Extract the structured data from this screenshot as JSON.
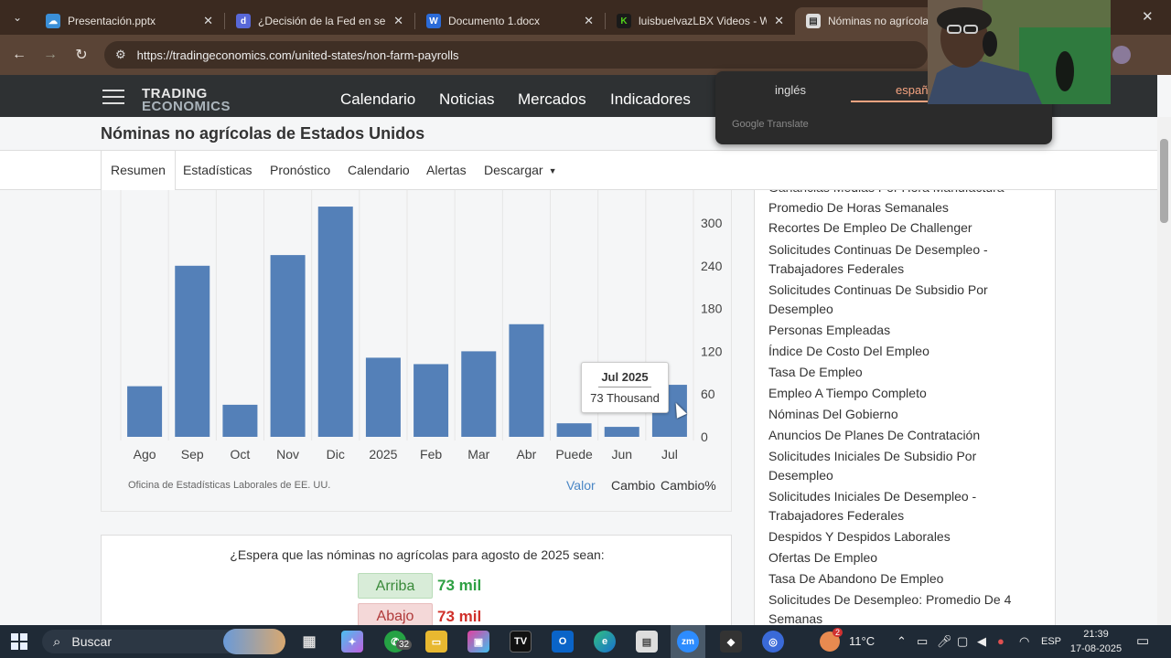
{
  "browser": {
    "tabs": [
      {
        "label": "Presentación.pptx",
        "icon": "onedrive-icon",
        "color": "#3a8fd8"
      },
      {
        "label": "¿Decisión de la Fed en septi",
        "icon": "doc-icon",
        "color": "#5868d8"
      },
      {
        "label": "Documento 1.docx",
        "icon": "word-icon",
        "color": "#2b6bd8"
      },
      {
        "label": "luisbuelvazLBX Videos - Wat",
        "icon": "kick-icon",
        "color": "#53d31a"
      },
      {
        "label": "Nóminas no agrícolas d",
        "icon": "te-icon",
        "color": "#dddddd"
      }
    ],
    "url": "https://tradingeconomics.com/united-states/non-farm-payrolls"
  },
  "site": {
    "logo_top": "TRADING",
    "logo_bottom": "ECONOMICS",
    "nav": [
      "Calendario",
      "Noticias",
      "Mercados",
      "Indicadores"
    ]
  },
  "page": {
    "title": "Nóminas no agrícolas de Estados Unidos",
    "subtabs": [
      "Resumen",
      "Estadísticas",
      "Pronóstico",
      "Calendario",
      "Alertas",
      "Descargar"
    ]
  },
  "chart_data": {
    "type": "bar",
    "categories": [
      "Ago",
      "Sep",
      "Oct",
      "Nov",
      "Dic",
      "2025",
      "Feb",
      "Mar",
      "Abr",
      "Puede",
      "Jun",
      "Jul"
    ],
    "values": [
      71,
      240,
      45,
      255,
      323,
      111,
      102,
      120,
      158,
      19,
      14,
      73
    ],
    "ylim": [
      0,
      330
    ],
    "yticks": [
      0,
      60,
      120,
      180,
      240,
      300
    ],
    "color": "#5480b8",
    "source": "Oficina de Estadísticas Laborales de EE. UU.",
    "tooltip": {
      "title": "Jul 2025",
      "value": "73 Thousand"
    },
    "view_options": [
      "Valor",
      "Cambio",
      "Cambio%"
    ]
  },
  "poll": {
    "question": "¿Espera que las nóminas no agrícolas para agosto de 2025 sean:",
    "up_label": "Arriba",
    "up_value": "73 mil",
    "down_label": "Abajo",
    "down_value": "73 mil"
  },
  "sidebar": {
    "items": [
      "Ganancias Medias Por Hora Manufactura",
      "Promedio De Horas Semanales",
      "Recortes De Empleo De Challenger",
      "Solicitudes Continuas De Desempleo - Trabajadores Federales",
      "Solicitudes Continuas De Subsidio Por Desempleo",
      "Personas Empleadas",
      "Índice De Costo Del Empleo",
      "Tasa De Empleo",
      "Empleo A Tiempo Completo",
      "Nóminas Del Gobierno",
      "Anuncios De Planes De Contratación",
      "Solicitudes Iniciales De Subsidio Por Desempleo",
      "Solicitudes Iniciales De Desempleo - Trabajadores Federales",
      "Despidos Y Despidos Laborales",
      "Ofertas De Empleo",
      "Tasa De Abandono De Empleo",
      "Solicitudes De Desempleo: Promedio De 4 Semanas"
    ]
  },
  "translate_popup": {
    "lang_from": "inglés",
    "lang_to": "españ",
    "footer": "Google Translate"
  },
  "taskbar": {
    "search_placeholder": "Buscar",
    "whatsapp_badge": "32",
    "weather": "11°C",
    "weather_badge": "2",
    "language": "ESP",
    "time": "21:39",
    "date": "17-08-2025"
  }
}
